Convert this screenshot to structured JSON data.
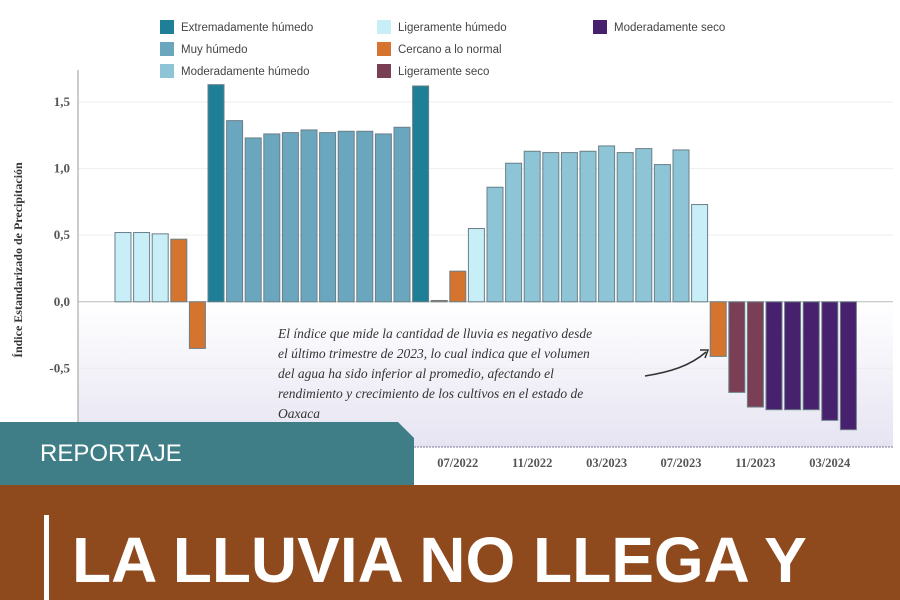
{
  "chart_data": {
    "type": "bar",
    "y_label": "Índice Estandarizado de Precipitación",
    "legend": [
      {
        "name": "Extremadamente húmedo",
        "color": "#1e7f96"
      },
      {
        "name": "Muy húmedo",
        "color": "#6aa7bf"
      },
      {
        "name": "Moderadamente húmedo",
        "color": "#8dc4d6"
      },
      {
        "name": "Ligeramente húmedo",
        "color": "#c8eef8"
      },
      {
        "name": "Cercano a lo normal",
        "color": "#d4742e"
      },
      {
        "name": "Ligeramente seco",
        "color": "#7b3f55"
      },
      {
        "name": "Moderadamente seco",
        "color": "#47206e"
      }
    ],
    "categories": [
      null,
      null,
      null,
      null,
      null,
      null,
      null,
      null,
      null,
      null,
      null,
      null,
      null,
      null,
      null,
      null,
      null,
      null,
      "07/2022",
      null,
      null,
      null,
      "11/2022",
      null,
      null,
      null,
      "03/2023",
      null,
      null,
      null,
      "07/2023",
      null,
      null,
      null,
      "11/2023",
      null,
      null,
      null,
      "03/2024",
      null
    ],
    "values": [
      0.52,
      0.52,
      0.51,
      0.47,
      -0.35,
      1.63,
      1.36,
      1.23,
      1.26,
      1.27,
      1.29,
      1.27,
      1.28,
      1.28,
      1.26,
      1.31,
      1.62,
      0.01,
      0.23,
      0.55,
      0.86,
      1.04,
      1.13,
      1.12,
      1.12,
      1.13,
      1.17,
      1.12,
      1.15,
      1.03,
      1.14,
      0.73,
      -0.41,
      -0.68,
      -0.79,
      -0.81,
      -0.81,
      -0.81,
      -0.89,
      -0.96
    ],
    "colors": [
      "#c8eef8",
      "#c8eef8",
      "#c8eef8",
      "#d4742e",
      "#d4742e",
      "#1e7f96",
      "#6aa7bf",
      "#6aa7bf",
      "#6aa7bf",
      "#6aa7bf",
      "#6aa7bf",
      "#6aa7bf",
      "#6aa7bf",
      "#6aa7bf",
      "#6aa7bf",
      "#6aa7bf",
      "#1e7f96",
      "#d4742e",
      "#d4742e",
      "#c8eef8",
      "#8dc4d6",
      "#8dc4d6",
      "#8dc4d6",
      "#8dc4d6",
      "#8dc4d6",
      "#8dc4d6",
      "#8dc4d6",
      "#8dc4d6",
      "#8dc4d6",
      "#8dc4d6",
      "#8dc4d6",
      "#c8eef8",
      "#d4742e",
      "#7b3f55",
      "#7b3f55",
      "#47206e",
      "#47206e",
      "#47206e",
      "#47206e",
      "#47206e"
    ],
    "ylim": [
      -1.09,
      1.74
    ],
    "yticks": [
      {
        "value": -0.5,
        "label": "-0,5"
      },
      {
        "value": 0,
        "label": "0,0"
      },
      {
        "value": 0.5,
        "label": "0,5"
      },
      {
        "value": 1,
        "label": "1,0"
      },
      {
        "value": 1.5,
        "label": "1,5"
      }
    ],
    "grid": true,
    "annotation": [
      "El índice que mide la cantidad de lluvia  es negativo desde",
      "el último trimestre de 2023, lo cual indica que el volumen",
      "del agua ha sido inferior al promedio, afectando el",
      "rendimiento y crecimiento de los cultivos en el estado de",
      "Oaxaca"
    ]
  },
  "section": "REPORTAJE",
  "headline": "LA LLUVIA NO LLEGA Y"
}
